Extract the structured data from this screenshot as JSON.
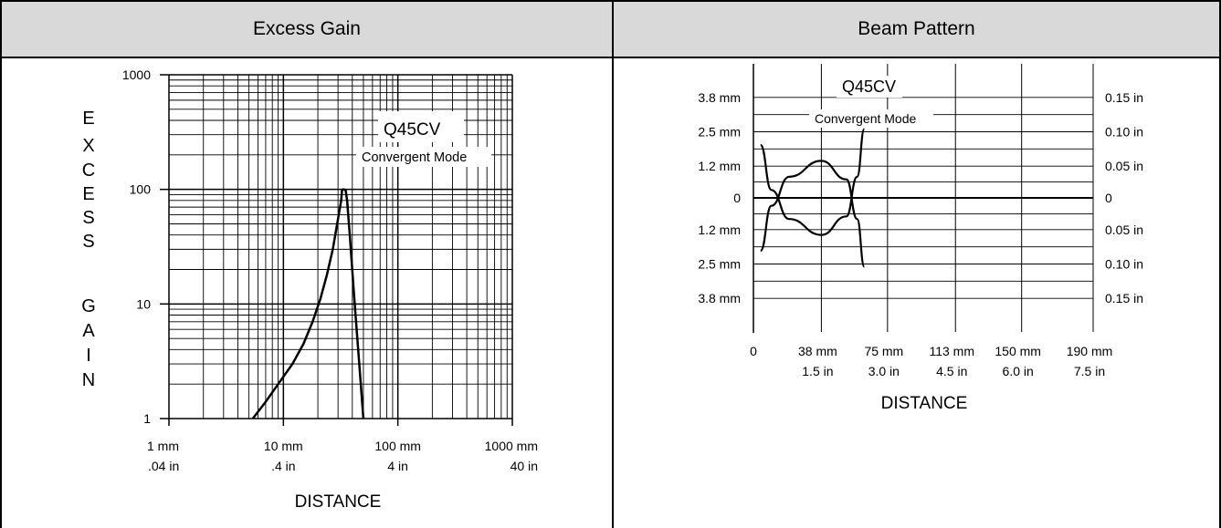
{
  "panels": {
    "left_title": "Excess Gain",
    "right_title": "Beam Pattern"
  },
  "chart_data": [
    {
      "type": "line",
      "title": "Excess Gain",
      "annotations": [
        "Q45CV",
        "Convergent Mode"
      ],
      "xlabel": "DISTANCE",
      "ylabel": "EXCESS GAIN",
      "ylabel_letters": [
        "E",
        "X",
        "C",
        "E",
        "S",
        "S",
        "G",
        "A",
        "I",
        "N"
      ],
      "x_scale": "log",
      "y_scale": "log",
      "xlim_mm": [
        1,
        1000
      ],
      "ylim": [
        1,
        1000
      ],
      "x_ticks": [
        {
          "mm": 1,
          "label": "1 mm",
          "label2": ".04 in"
        },
        {
          "mm": 10,
          "label": "10 mm",
          "label2": ".4 in"
        },
        {
          "mm": 100,
          "label": "100 mm",
          "label2": "4 in"
        },
        {
          "mm": 1000,
          "label": "1000 mm",
          "label2": "40 in"
        }
      ],
      "y_ticks": [
        {
          "value": 1,
          "label": "1"
        },
        {
          "value": 10,
          "label": "10"
        },
        {
          "value": 100,
          "label": "100"
        },
        {
          "value": 1000,
          "label": "1000"
        }
      ],
      "grid": true,
      "series": [
        {
          "x": [
            5.4,
            7,
            9,
            12,
            15,
            18,
            21,
            24,
            27,
            30,
            32,
            32.5,
            33,
            34,
            35,
            36,
            38,
            42,
            46,
            50
          ],
          "y": [
            1,
            1.4,
            2,
            3,
            4.5,
            7,
            11,
            18,
            30,
            55,
            80,
            98,
            100,
            100,
            98,
            80,
            40,
            10,
            3,
            1
          ]
        }
      ]
    },
    {
      "type": "line",
      "title": "Beam Pattern",
      "annotations": [
        "Q45CV",
        "Convergent Mode"
      ],
      "xlabel": "DISTANCE",
      "xlim_mm": [
        0,
        190
      ],
      "ylim_mm": [
        -5,
        5
      ],
      "grid": true,
      "x_ticks": [
        {
          "mm": 0,
          "label": "0",
          "label2": ""
        },
        {
          "mm": 38,
          "label": "38 mm",
          "label2": "1.5 in"
        },
        {
          "mm": 75,
          "label": "75 mm",
          "label2": "3.0 in"
        },
        {
          "mm": 113,
          "label": "113 mm",
          "label2": "4.5 in"
        },
        {
          "mm": 150,
          "label": "150 mm",
          "label2": "6.0 in"
        },
        {
          "mm": 190,
          "label": "190 mm",
          "label2": "7.5 in"
        }
      ],
      "y_ticks_left": [
        {
          "mm": 3.8,
          "label": "3.8 mm"
        },
        {
          "mm": 2.5,
          "label": "2.5 mm"
        },
        {
          "mm": 1.2,
          "label": "1.2 mm"
        },
        {
          "mm": 0,
          "label": "0"
        },
        {
          "mm": -1.2,
          "label": "1.2 mm"
        },
        {
          "mm": -2.5,
          "label": "2.5 mm"
        },
        {
          "mm": -3.8,
          "label": "3.8 mm"
        }
      ],
      "y_ticks_right": [
        {
          "mm": 3.8,
          "label": "0.15 in"
        },
        {
          "mm": 2.5,
          "label": "0.10 in"
        },
        {
          "mm": 1.2,
          "label": "0.05 in"
        },
        {
          "mm": 0,
          "label": "0"
        },
        {
          "mm": -1.2,
          "label": "0.05 in"
        },
        {
          "mm": -2.5,
          "label": "0.10 in"
        },
        {
          "mm": -3.8,
          "label": "0.15 in"
        }
      ],
      "series": [
        {
          "x": [
            4,
            10,
            20,
            38,
            52,
            58,
            62
          ],
          "y": [
            2.0,
            0.3,
            -0.8,
            -1.4,
            -0.7,
            0.8,
            2.6
          ]
        },
        {
          "x": [
            4,
            10,
            20,
            38,
            52,
            58,
            62
          ],
          "y": [
            -2.0,
            -0.3,
            0.8,
            1.4,
            0.7,
            -0.8,
            -2.6
          ]
        }
      ]
    }
  ]
}
